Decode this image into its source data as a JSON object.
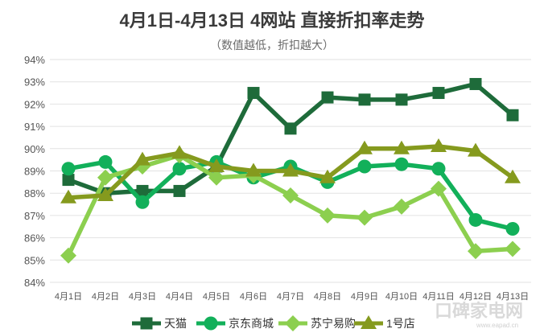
{
  "chart_data": {
    "type": "line",
    "title": "4月1日-4月13日 4网站 直接折扣率走势",
    "subtitle": "（数值越低，折扣越大）",
    "categories": [
      "4月1日",
      "4月2日",
      "4月3日",
      "4月4日",
      "4月5日",
      "4月6日",
      "4月7日",
      "4月8日",
      "4月9日",
      "4月10日",
      "4月11日",
      "4月12日",
      "4月13日"
    ],
    "yticks": [
      "84%",
      "85%",
      "86%",
      "87%",
      "88%",
      "89%",
      "90%",
      "91%",
      "92%",
      "93%",
      "94%"
    ],
    "ylim": [
      84,
      94
    ],
    "grid": true,
    "legend_position": "bottom",
    "series": [
      {
        "name": "天猫",
        "color": "#1e6b3a",
        "marker": "square",
        "values": [
          88.6,
          88.0,
          88.1,
          88.1,
          89.2,
          92.5,
          90.9,
          92.3,
          92.2,
          92.2,
          92.5,
          92.9,
          91.5
        ]
      },
      {
        "name": "京东商城",
        "color": "#12b05a",
        "marker": "circle",
        "values": [
          89.1,
          89.4,
          87.6,
          89.1,
          89.4,
          88.7,
          89.2,
          88.5,
          89.2,
          89.3,
          89.1,
          86.8,
          86.4
        ]
      },
      {
        "name": "苏宁易购",
        "color": "#8ccf4f",
        "marker": "diamond",
        "values": [
          85.2,
          88.7,
          89.2,
          89.7,
          88.7,
          88.8,
          87.9,
          87.0,
          86.9,
          87.4,
          88.2,
          85.4,
          85.5
        ]
      },
      {
        "name": "1号店",
        "color": "#859a1e",
        "marker": "triangle",
        "values": [
          87.8,
          87.9,
          89.5,
          89.8,
          89.2,
          89.0,
          89.0,
          88.7,
          90.0,
          90.0,
          90.1,
          89.9,
          88.7
        ]
      }
    ]
  },
  "watermark": {
    "brand": "口碑家电网",
    "url": "www.eapad.cn"
  }
}
